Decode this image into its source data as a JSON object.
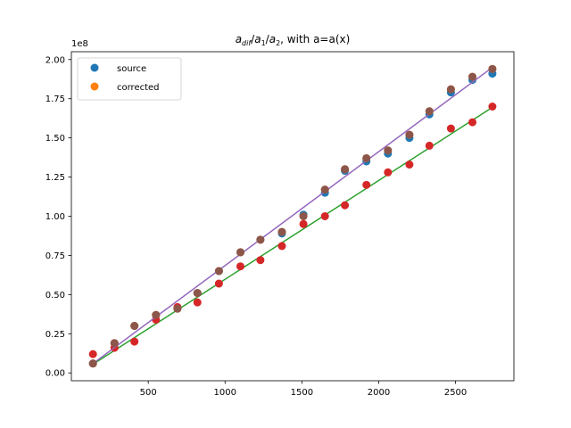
{
  "chart_data": {
    "type": "scatter",
    "title": "a_dif/a_1/a_2, with a=a(x)",
    "title_parts": {
      "a": "a",
      "dif": "dif",
      "sep1": "/",
      "a1": "a",
      "sub1": "1",
      "sep2": "/",
      "a2": "a",
      "sub2": "2",
      "rest": ", with a=a(x)"
    },
    "offset_text": "1e8",
    "xlim": [
      -0.5,
      2880
    ],
    "ylim": [
      -0.05,
      2.05
    ],
    "y_scale_exponent": 8,
    "x_ticks": [
      500,
      1000,
      1500,
      2000,
      2500
    ],
    "x_tick_labels": [
      "500",
      "1000",
      "1500",
      "2000",
      "2500"
    ],
    "y_ticks": [
      0.0,
      0.25,
      0.5,
      0.75,
      1.0,
      1.25,
      1.5,
      1.75,
      2.0
    ],
    "y_tick_labels": [
      "0.00",
      "0.25",
      "0.50",
      "0.75",
      "1.00",
      "1.25",
      "1.50",
      "1.75",
      "2.00"
    ],
    "grid": false,
    "legend_position": "upper left",
    "series": [
      {
        "name": "source",
        "kind": "points",
        "color": "#1f77b4",
        "x": [
          140,
          280,
          410,
          550,
          690,
          820,
          960,
          1100,
          1230,
          1370,
          1510,
          1650,
          1780,
          1920,
          2060,
          2200,
          2330,
          2470,
          2610,
          2740
        ],
        "y": [
          0.06,
          0.19,
          0.3,
          0.37,
          0.41,
          0.51,
          0.65,
          0.77,
          0.85,
          0.89,
          1.01,
          1.15,
          1.29,
          1.35,
          1.4,
          1.5,
          1.65,
          1.79,
          1.87,
          1.91
        ]
      },
      {
        "name": "corrected",
        "kind": "points",
        "color": "#ff7f0e",
        "x": [
          140,
          280,
          410,
          550,
          690,
          820,
          960,
          1100,
          1230,
          1370,
          1510,
          1650,
          1780,
          1920,
          2060,
          2200,
          2330,
          2470,
          2610,
          2740
        ],
        "y": [
          0.06,
          0.19,
          0.3,
          0.37,
          0.41,
          0.51,
          0.65,
          0.77,
          0.85,
          0.9,
          1.0,
          1.17,
          1.3,
          1.37,
          1.42,
          1.52,
          1.67,
          1.81,
          1.89,
          1.94
        ]
      },
      {
        "kind": "line",
        "color": "#2ca02c",
        "x": [
          140,
          2740
        ],
        "y": [
          0.055,
          1.695
        ]
      },
      {
        "kind": "points",
        "color": "#d62728",
        "x": [
          140,
          280,
          410,
          550,
          690,
          820,
          960,
          1100,
          1230,
          1370,
          1510,
          1650,
          1780,
          1920,
          2060,
          2200,
          2330,
          2470,
          2610,
          2740
        ],
        "y": [
          0.12,
          0.16,
          0.2,
          0.34,
          0.42,
          0.45,
          0.57,
          0.68,
          0.72,
          0.81,
          0.95,
          1.0,
          1.07,
          1.2,
          1.28,
          1.33,
          1.45,
          1.56,
          1.6,
          1.7
        ]
      },
      {
        "kind": "line",
        "color": "#9467bd",
        "x": [
          140,
          2740
        ],
        "y": [
          0.06,
          1.95
        ]
      },
      {
        "kind": "points",
        "color": "#8c564b",
        "x": [
          140,
          280,
          410,
          550,
          690,
          820,
          960,
          1100,
          1230,
          1370,
          1510,
          1650,
          1780,
          1920,
          2060,
          2200,
          2330,
          2470,
          2610,
          2740
        ],
        "y": [
          0.06,
          0.19,
          0.3,
          0.37,
          0.41,
          0.51,
          0.65,
          0.77,
          0.85,
          0.9,
          1.0,
          1.17,
          1.3,
          1.37,
          1.42,
          1.52,
          1.67,
          1.81,
          1.89,
          1.94
        ]
      }
    ]
  }
}
